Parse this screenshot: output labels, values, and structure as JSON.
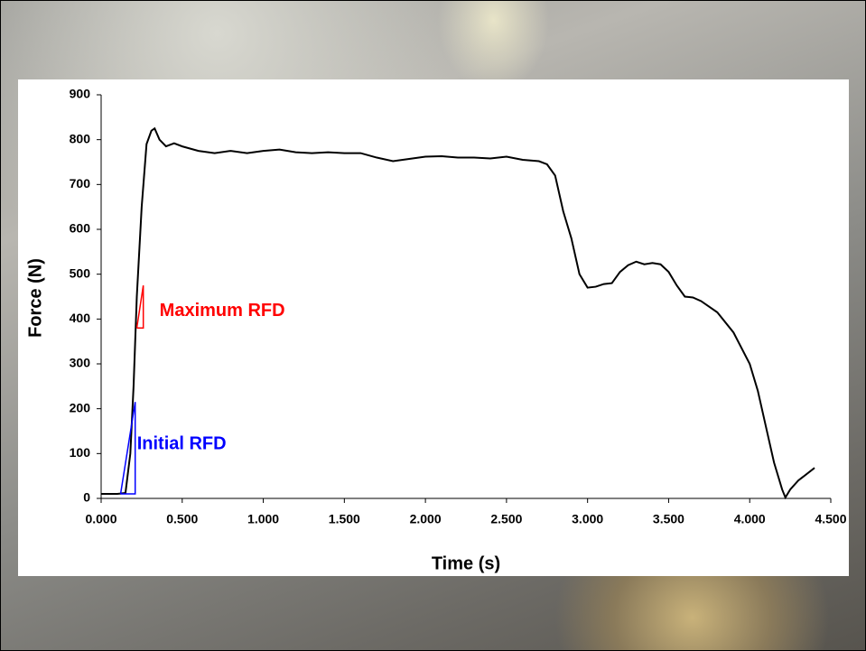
{
  "chart_data": {
    "type": "line",
    "x_label": "Time (s)",
    "y_label": "Force (N)",
    "xlim": [
      0,
      4.5
    ],
    "ylim": [
      0,
      900
    ],
    "xticks": [
      {
        "value": 0,
        "label": "0.000"
      },
      {
        "value": 0.5,
        "label": "0.500"
      },
      {
        "value": 1,
        "label": "1.000"
      },
      {
        "value": 1.5,
        "label": "1.500"
      },
      {
        "value": 2,
        "label": "2.000"
      },
      {
        "value": 2.5,
        "label": "2.500"
      },
      {
        "value": 3,
        "label": "3.000"
      },
      {
        "value": 3.5,
        "label": "3.500"
      },
      {
        "value": 4,
        "label": "4.000"
      },
      {
        "value": 4.5,
        "label": "4.500"
      }
    ],
    "yticks": [
      0,
      100,
      200,
      300,
      400,
      500,
      600,
      700,
      800,
      900
    ],
    "series": [
      {
        "color": "#000000",
        "x": [
          0,
          0.1,
          0.15,
          0.18,
          0.2,
          0.22,
          0.25,
          0.28,
          0.31,
          0.33,
          0.36,
          0.4,
          0.45,
          0.5,
          0.6,
          0.7,
          0.8,
          0.9,
          1.0,
          1.1,
          1.2,
          1.3,
          1.4,
          1.5,
          1.6,
          1.7,
          1.8,
          1.9,
          2.0,
          2.1,
          2.2,
          2.3,
          2.4,
          2.5,
          2.6,
          2.7,
          2.75,
          2.8,
          2.85,
          2.9,
          2.95,
          3.0,
          3.05,
          3.1,
          3.15,
          3.2,
          3.25,
          3.3,
          3.35,
          3.4,
          3.45,
          3.5,
          3.55,
          3.6,
          3.65,
          3.7,
          3.8,
          3.9,
          4.0,
          4.05,
          4.1,
          4.15,
          4.2,
          4.22,
          4.25,
          4.3,
          4.4
        ],
        "values": [
          10,
          10,
          12,
          100,
          250,
          450,
          650,
          790,
          820,
          825,
          800,
          785,
          792,
          785,
          775,
          770,
          775,
          770,
          775,
          778,
          772,
          770,
          772,
          770,
          770,
          760,
          752,
          757,
          762,
          763,
          760,
          760,
          758,
          762,
          755,
          752,
          745,
          720,
          640,
          580,
          500,
          470,
          472,
          478,
          480,
          505,
          520,
          528,
          522,
          525,
          522,
          505,
          475,
          450,
          448,
          440,
          415,
          370,
          300,
          240,
          160,
          80,
          20,
          2,
          20,
          40,
          68
        ]
      },
      {
        "name": "Initial RFD",
        "color": "#0000ff",
        "x": [
          0.12,
          0.21,
          0.21,
          0.12
        ],
        "values": [
          10,
          215,
          10,
          10
        ]
      },
      {
        "name": "Maximum RFD",
        "color": "#ff0000",
        "x": [
          0.22,
          0.26,
          0.26,
          0.22
        ],
        "values": [
          380,
          475,
          380,
          380
        ]
      }
    ]
  }
}
